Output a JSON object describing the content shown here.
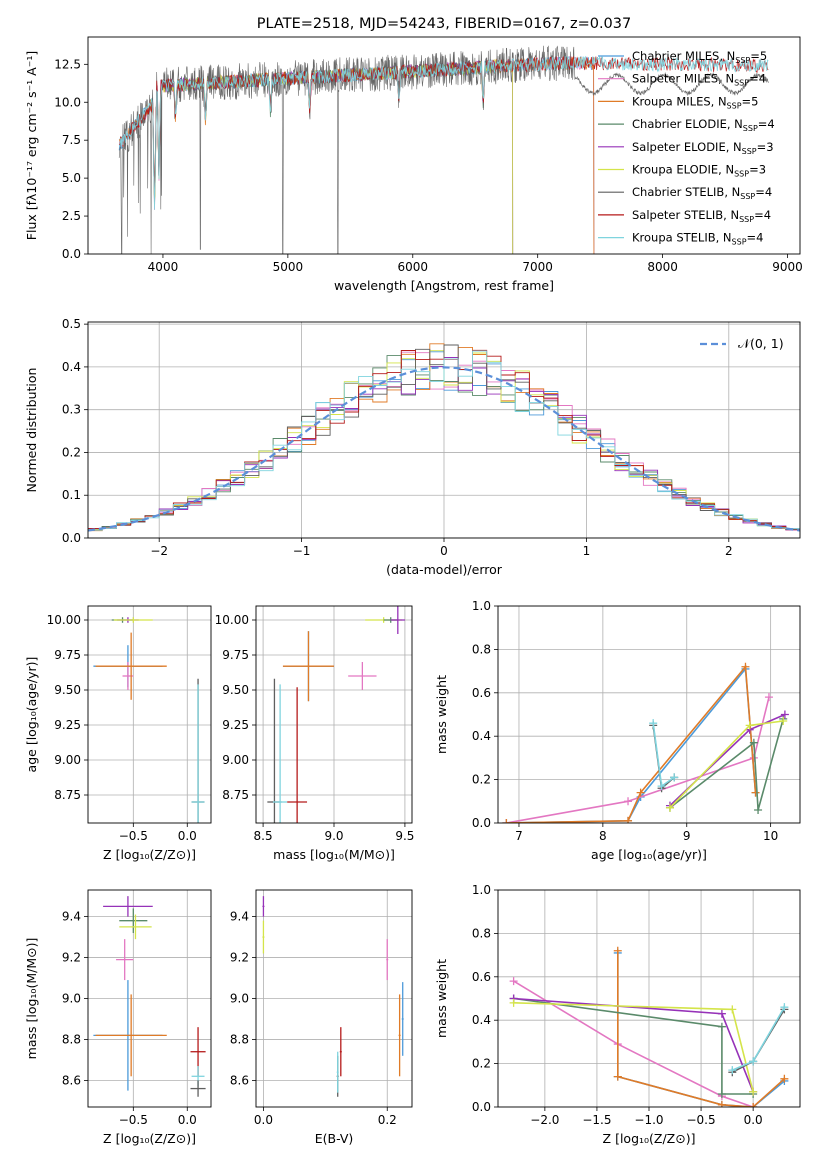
{
  "colors": {
    "Chabrier MILES": "#4c9ad9",
    "Salpeter MILES": "#e377c2",
    "Kroupa MILES": "#e07b27",
    "Chabrier ELODIE": "#5a8a6a",
    "Salpeter ELODIE": "#9632b8",
    "Kroupa ELODIE": "#d4e44a",
    "Chabrier STELIB": "#5f5f5f",
    "Salpeter STELIB": "#b51a1a",
    "Kroupa STELIB": "#7fd4de",
    "gauss": "#5b8fd9",
    "grid": "#b0b0b0"
  },
  "chart_data": [
    {
      "id": "spectrum",
      "type": "line",
      "title": "PLATE=2518, MJD=54243, FIBERID=0167, z=0.037",
      "xlabel": "wavelength [Angstrom, rest frame]",
      "ylabel": "Flux [fλ10⁻¹⁷ erg cm⁻² s⁻¹ A⁻¹]",
      "xlim": [
        3400,
        9100
      ],
      "ylim": [
        0,
        14.3
      ],
      "xticks": [
        4000,
        5000,
        6000,
        7000,
        8000,
        9000
      ],
      "yticks": [
        0.0,
        2.5,
        5.0,
        7.5,
        10.0,
        12.5
      ],
      "grid": false,
      "legend_position": "top-right",
      "series": [
        {
          "name": "Chabrier MILES, N_SSP=5",
          "label_main": "Chabrier MILES, N",
          "label_sub": "SSP",
          "label_tail": "=5",
          "x_range": [
            3650,
            7450
          ]
        },
        {
          "name": "Salpeter MILES, N_SSP=4",
          "label_main": "Salpeter MILES, N",
          "label_sub": "SSP",
          "label_tail": "=4",
          "x_range": [
            3650,
            7450
          ]
        },
        {
          "name": "Kroupa MILES, N_SSP=5",
          "label_main": "Kroupa MILES, N",
          "label_sub": "SSP",
          "label_tail": "=5",
          "x_range": [
            3650,
            7450
          ]
        },
        {
          "name": "Chabrier ELODIE, N_SSP=4",
          "label_main": "Chabrier ELODIE, N",
          "label_sub": "SSP",
          "label_tail": "=4",
          "x_range": [
            3900,
            6800
          ]
        },
        {
          "name": "Salpeter ELODIE, N_SSP=3",
          "label_main": "Salpeter ELODIE, N",
          "label_sub": "SSP",
          "label_tail": "=3",
          "x_range": [
            3900,
            6800
          ]
        },
        {
          "name": "Kroupa ELODIE, N_SSP=3",
          "label_main": "Kroupa ELODIE, N",
          "label_sub": "SSP",
          "label_tail": "=3",
          "x_range": [
            3900,
            6800
          ]
        },
        {
          "name": "Chabrier STELIB, N_SSP=4",
          "label_main": "Chabrier STELIB, N",
          "label_sub": "SSP",
          "label_tail": "=4",
          "x_range": [
            3650,
            8850
          ]
        },
        {
          "name": "Salpeter STELIB, N_SSP=4",
          "label_main": "Salpeter STELIB, N",
          "label_sub": "SSP",
          "label_tail": "=4",
          "x_range": [
            3650,
            8850
          ]
        },
        {
          "name": "Kroupa STELIB, N_SSP=4",
          "label_main": "Kroupa STELIB, N",
          "label_sub": "SSP",
          "label_tail": "=4",
          "x_range": [
            3650,
            8850
          ]
        }
      ]
    },
    {
      "id": "residuals",
      "type": "bar",
      "xlabel": "(data-model)/error",
      "ylabel": "Normed distribution",
      "xlim": [
        -2.5,
        2.5
      ],
      "ylim": [
        0,
        0.505
      ],
      "xticks": [
        -2,
        -1,
        0,
        1,
        2
      ],
      "yticks": [
        0.0,
        0.1,
        0.2,
        0.3,
        0.4,
        0.5
      ],
      "grid": true,
      "legend_position": "top-right",
      "legend": "𝒩(0, 1)",
      "bin_width": 0.1,
      "gaussian_dashed": true
    },
    {
      "id": "age-vs-Z",
      "type": "scatter",
      "xlabel": "Z [log₁₀(Z/Z⊙)]",
      "ylabel": "age  [log₁₀(age/yr)]",
      "xlim": [
        -0.92,
        0.22
      ],
      "ylim": [
        8.55,
        10.1
      ],
      "xticks": [
        -0.5,
        0.0
      ],
      "yticks": [
        8.75,
        9.0,
        9.25,
        9.5,
        9.75,
        10.0
      ],
      "grid": true,
      "points": [
        {
          "series": "Chabrier MILES",
          "x": -0.55,
          "y": 9.67,
          "xerr": 0.32,
          "yerr": 0.15
        },
        {
          "series": "Salpeter MILES",
          "x": -0.55,
          "y": 9.6,
          "xerr": 0.05,
          "yerr": 0.1
        },
        {
          "series": "Kroupa MILES",
          "x": -0.52,
          "y": 9.67,
          "xerr": 0.33,
          "yerr": 0.24
        },
        {
          "series": "Chabrier ELODIE",
          "x": -0.6,
          "y": 10.0,
          "xerr": 0.1,
          "yerr": 0.02
        },
        {
          "series": "Salpeter ELODIE",
          "x": -0.55,
          "y": 10.0,
          "xerr": 0.1,
          "yerr": 0.02
        },
        {
          "series": "Kroupa ELODIE",
          "x": -0.5,
          "y": 10.0,
          "xerr": 0.18,
          "yerr": 0.02
        },
        {
          "series": "Chabrier STELIB",
          "x": 0.1,
          "y": 8.7,
          "xerr": 0.06,
          "yerr": 0.88
        },
        {
          "series": "Kroupa STELIB",
          "x": 0.1,
          "y": 8.7,
          "xerr": 0.06,
          "yerr": 0.84
        }
      ]
    },
    {
      "id": "age-vs-mass",
      "type": "scatter",
      "xlabel": "mass [log₁₀(M/M⊙)]",
      "ylabel": "",
      "xlim": [
        8.45,
        9.55
      ],
      "ylim": [
        8.55,
        10.1
      ],
      "xticks": [
        8.5,
        9.0,
        9.5
      ],
      "yticks": [
        8.75,
        9.0,
        9.25,
        9.5,
        9.75,
        10.0
      ],
      "grid": true,
      "points": [
        {
          "series": "Chabrier MILES",
          "x": 8.82,
          "y": 9.67,
          "xerr": 0.18,
          "yerr": 0.25
        },
        {
          "series": "Kroupa MILES",
          "x": 8.82,
          "y": 9.67,
          "xerr": 0.18,
          "yerr": 0.25
        },
        {
          "series": "Salpeter MILES",
          "x": 9.2,
          "y": 9.6,
          "xerr": 0.1,
          "yerr": 0.1
        },
        {
          "series": "Kroupa ELODIE",
          "x": 9.35,
          "y": 10.0,
          "xerr": 0.13,
          "yerr": 0.02
        },
        {
          "series": "Chabrier ELODIE",
          "x": 9.4,
          "y": 10.0,
          "xerr": 0.05,
          "yerr": 0.02
        },
        {
          "series": "Salpeter ELODIE",
          "x": 9.45,
          "y": 10.0,
          "xerr": 0.05,
          "yerr": 0.1
        },
        {
          "series": "Chabrier STELIB",
          "x": 8.58,
          "y": 8.7,
          "xerr": 0.05,
          "yerr": 0.88
        },
        {
          "series": "Kroupa STELIB",
          "x": 8.62,
          "y": 8.7,
          "xerr": 0.05,
          "yerr": 0.84
        },
        {
          "series": "Salpeter STELIB",
          "x": 8.74,
          "y": 8.7,
          "xerr": 0.07,
          "yerr": 0.82
        }
      ]
    },
    {
      "id": "weight-vs-age",
      "type": "line",
      "xlabel": "age  [log₁₀(age/yr)]",
      "ylabel": "mass weight",
      "xlim": [
        6.75,
        10.35
      ],
      "ylim": [
        0,
        1.0
      ],
      "xticks": [
        7,
        8,
        9,
        10
      ],
      "yticks": [
        0.0,
        0.2,
        0.4,
        0.6,
        0.8,
        1.0
      ],
      "grid": true,
      "series": [
        {
          "name": "Chabrier MILES",
          "x": [
            6.85,
            8.3,
            8.45,
            9.7,
            9.82
          ],
          "y": [
            0.0,
            0.01,
            0.12,
            0.71,
            0.14
          ]
        },
        {
          "name": "Salpeter MILES",
          "x": [
            6.85,
            8.3,
            9.8,
            9.98
          ],
          "y": [
            0.0,
            0.1,
            0.3,
            0.58
          ]
        },
        {
          "name": "Kroupa MILES",
          "x": [
            6.85,
            8.3,
            8.45,
            9.7,
            9.82
          ],
          "y": [
            0.0,
            0.01,
            0.14,
            0.72,
            0.14
          ]
        },
        {
          "name": "Chabrier ELODIE",
          "x": [
            8.8,
            9.8,
            9.85,
            10.15
          ],
          "y": [
            0.07,
            0.37,
            0.06,
            0.48
          ]
        },
        {
          "name": "Salpeter ELODIE",
          "x": [
            8.8,
            9.75,
            10.17
          ],
          "y": [
            0.08,
            0.43,
            0.5
          ]
        },
        {
          "name": "Kroupa ELODIE",
          "x": [
            8.8,
            9.75,
            10.15
          ],
          "y": [
            0.07,
            0.45,
            0.47
          ]
        },
        {
          "name": "Chabrier STELIB",
          "x": [
            8.6,
            8.7,
            8.85
          ],
          "y": [
            0.45,
            0.16,
            0.21
          ]
        },
        {
          "name": "Kroupa STELIB",
          "x": [
            8.6,
            8.7,
            8.85
          ],
          "y": [
            0.46,
            0.17,
            0.21
          ]
        }
      ]
    },
    {
      "id": "mass-vs-Z",
      "type": "scatter",
      "xlabel": "Z [log₁₀(Z/Z⊙)]",
      "ylabel": "mass [log₁₀(M/M⊙)]",
      "xlim": [
        -0.92,
        0.22
      ],
      "ylim": [
        8.47,
        9.53
      ],
      "xticks": [
        -0.5,
        0.0
      ],
      "yticks": [
        8.6,
        8.8,
        9.0,
        9.2,
        9.4
      ],
      "grid": true,
      "points": [
        {
          "series": "Chabrier MILES",
          "x": -0.55,
          "y": 8.82,
          "xerr": 0.32,
          "yerr": 0.27
        },
        {
          "series": "Kroupa MILES",
          "x": -0.52,
          "y": 8.82,
          "xerr": 0.33,
          "yerr": 0.2
        },
        {
          "series": "Salpeter MILES",
          "x": -0.58,
          "y": 9.19,
          "xerr": 0.08,
          "yerr": 0.1
        },
        {
          "series": "Chabrier ELODIE",
          "x": -0.5,
          "y": 9.38,
          "xerr": 0.13,
          "yerr": 0.06
        },
        {
          "series": "Salpeter ELODIE",
          "x": -0.55,
          "y": 9.45,
          "xerr": 0.23,
          "yerr": 0.05
        },
        {
          "series": "Kroupa ELODIE",
          "x": -0.48,
          "y": 9.35,
          "xerr": 0.15,
          "yerr": 0.06
        },
        {
          "series": "Salpeter STELIB",
          "x": 0.1,
          "y": 8.74,
          "xerr": 0.07,
          "yerr": 0.12
        },
        {
          "series": "Kroupa STELIB",
          "x": 0.1,
          "y": 8.62,
          "xerr": 0.06,
          "yerr": 0.05
        },
        {
          "series": "Chabrier STELIB",
          "x": 0.1,
          "y": 8.56,
          "xerr": 0.07,
          "yerr": 0.04
        }
      ]
    },
    {
      "id": "mass-vs-EBV",
      "type": "scatter",
      "xlabel": "E(B-V)",
      "ylabel": "",
      "xlim": [
        -0.012,
        0.24
      ],
      "ylim": [
        8.47,
        9.53
      ],
      "xticks": [
        0.0,
        0.2
      ],
      "yticks": [
        8.6,
        8.8,
        9.0,
        9.2,
        9.4
      ],
      "grid": true,
      "points": [
        {
          "series": "Salpeter ELODIE",
          "x": 0.0,
          "y": 9.45,
          "xerr": 0.0,
          "yerr": 0.05
        },
        {
          "series": "Kroupa ELODIE",
          "x": 0.0,
          "y": 9.3,
          "xerr": 0.0,
          "yerr": 0.08
        },
        {
          "series": "Chabrier STELIB",
          "x": 0.12,
          "y": 8.62,
          "xerr": 0.0,
          "yerr": 0.1
        },
        {
          "series": "Kroupa STELIB",
          "x": 0.12,
          "y": 8.64,
          "xerr": 0.0,
          "yerr": 0.1
        },
        {
          "series": "Salpeter STELIB",
          "x": 0.125,
          "y": 8.74,
          "xerr": 0.0,
          "yerr": 0.12
        },
        {
          "series": "Salpeter MILES",
          "x": 0.2,
          "y": 9.19,
          "xerr": 0.0,
          "yerr": 0.1
        },
        {
          "series": "Kroupa MILES",
          "x": 0.22,
          "y": 8.82,
          "xerr": 0.0,
          "yerr": 0.2
        },
        {
          "series": "Chabrier MILES",
          "x": 0.225,
          "y": 8.9,
          "xerr": 0.0,
          "yerr": 0.18
        }
      ]
    },
    {
      "id": "weight-vs-Z",
      "type": "line",
      "xlabel": "Z [log₁₀(Z/Z⊙)]",
      "ylabel": "mass weight",
      "xlim": [
        -2.45,
        0.45
      ],
      "ylim": [
        0,
        1.0
      ],
      "xticks": [
        -2.0,
        -1.5,
        -1.0,
        -0.5,
        0.0
      ],
      "yticks": [
        0.0,
        0.2,
        0.4,
        0.6,
        0.8,
        1.0
      ],
      "grid": true,
      "series": [
        {
          "name": "Chabrier MILES",
          "x": [
            -1.3,
            -1.3,
            -0.3,
            0.0,
            0.3
          ],
          "y": [
            0.71,
            0.14,
            0.01,
            0.0,
            0.12
          ]
        },
        {
          "name": "Salpeter MILES",
          "x": [
            -2.3,
            -1.3,
            -0.3,
            0.0
          ],
          "y": [
            0.58,
            0.29,
            0.05,
            0.0
          ]
        },
        {
          "name": "Kroupa MILES",
          "x": [
            -1.3,
            -1.3,
            -0.3,
            0.0,
            0.3
          ],
          "y": [
            0.72,
            0.14,
            0.01,
            0.0,
            0.13
          ]
        },
        {
          "name": "Chabrier ELODIE",
          "x": [
            -2.3,
            -0.3,
            -0.3,
            0.0
          ],
          "y": [
            0.5,
            0.37,
            0.06,
            0.06
          ]
        },
        {
          "name": "Salpeter ELODIE",
          "x": [
            -2.3,
            -0.3,
            0.0
          ],
          "y": [
            0.5,
            0.43,
            0.07
          ]
        },
        {
          "name": "Kroupa ELODIE",
          "x": [
            -2.3,
            -0.2,
            0.0
          ],
          "y": [
            0.48,
            0.45,
            0.07
          ]
        },
        {
          "name": "Chabrier STELIB",
          "x": [
            -0.2,
            0.0,
            0.3
          ],
          "y": [
            0.16,
            0.21,
            0.45
          ]
        },
        {
          "name": "Kroupa STELIB",
          "x": [
            -0.2,
            0.0,
            0.3
          ],
          "y": [
            0.17,
            0.21,
            0.46
          ]
        }
      ]
    }
  ]
}
